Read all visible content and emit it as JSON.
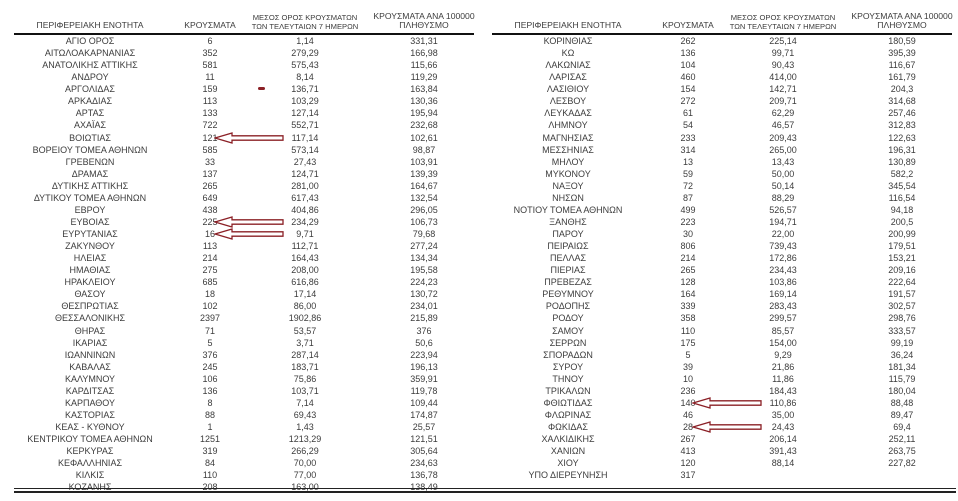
{
  "header": {
    "col_region": "ΠΕΡΙΦΕΡΕΙΑΚΗ ΕΝΟΤΗΤΑ",
    "col_cases": "ΚΡΟΥΣΜΑΤΑ",
    "col_avg7_line1": "ΜΕΣΟΣ ΟΡΟΣ ΚΡΟΥΣΜΑΤΩΝ",
    "col_avg7_line2": "ΤΩΝ ΤΕΛΕΥΤΑΙΩΝ 7 ΗΜΕΡΩΝ",
    "col_per100k_line1": "ΚΡΟΥΣΜΑΤΑ ΑΝΑ 100000",
    "col_per100k_line2": "ΠΛΗΘΥΣΜΟ"
  },
  "colors": {
    "annotation_arrow": "#8b2026",
    "text": "#3c3c3c",
    "rule": "#111111"
  },
  "tables": {
    "left": {
      "rows": [
        {
          "region": "ΑΓΙΟ ΟΡΟΣ",
          "cases": "6",
          "avg7": "1,14",
          "per100k": "331,31"
        },
        {
          "region": "ΑΙΤΩΛΟΑΚΑΡΝΑΝΙΑΣ",
          "cases": "352",
          "avg7": "279,29",
          "per100k": "166,98"
        },
        {
          "region": "ΑΝΑΤΟΛΙΚΗΣ ΑΤΤΙΚΗΣ",
          "cases": "581",
          "avg7": "575,43",
          "per100k": "115,66"
        },
        {
          "region": "ΑΝΔΡΟΥ",
          "cases": "11",
          "avg7": "8,14",
          "per100k": "119,29"
        },
        {
          "region": "ΑΡΓΟΛΙΔΑΣ",
          "cases": "159",
          "avg7": "136,71",
          "per100k": "163,84",
          "annotation": "dash"
        },
        {
          "region": "ΑΡΚΑΔΙΑΣ",
          "cases": "113",
          "avg7": "103,29",
          "per100k": "130,36"
        },
        {
          "region": "ΑΡΤΑΣ",
          "cases": "133",
          "avg7": "127,14",
          "per100k": "195,94"
        },
        {
          "region": "ΑΧΑΪΑΣ",
          "cases": "722",
          "avg7": "552,71",
          "per100k": "232,68"
        },
        {
          "region": "ΒΟΙΩΤΙΑΣ",
          "cases": "121",
          "avg7": "117,14",
          "per100k": "102,61",
          "annotation": "arrow"
        },
        {
          "region": "ΒΟΡΕΙΟΥ ΤΟΜΕΑ ΑΘΗΝΩΝ",
          "cases": "585",
          "avg7": "573,14",
          "per100k": "98,87"
        },
        {
          "region": "ΓΡΕΒΕΝΩΝ",
          "cases": "33",
          "avg7": "27,43",
          "per100k": "103,91"
        },
        {
          "region": "ΔΡΑΜΑΣ",
          "cases": "137",
          "avg7": "124,71",
          "per100k": "139,39"
        },
        {
          "region": "ΔΥΤΙΚΗΣ ΑΤΤΙΚΗΣ",
          "cases": "265",
          "avg7": "281,00",
          "per100k": "164,67"
        },
        {
          "region": "ΔΥΤΙΚΟΥ ΤΟΜΕΑ ΑΘΗΝΩΝ",
          "cases": "649",
          "avg7": "617,43",
          "per100k": "132,54"
        },
        {
          "region": "ΕΒΡΟΥ",
          "cases": "438",
          "avg7": "404,86",
          "per100k": "296,05"
        },
        {
          "region": "ΕΥΒΟΙΑΣ",
          "cases": "225",
          "avg7": "234,29",
          "per100k": "106,73",
          "annotation": "arrow"
        },
        {
          "region": "ΕΥΡΥΤΑΝΙΑΣ",
          "cases": "16",
          "avg7": "9,71",
          "per100k": "79,68",
          "annotation": "arrow"
        },
        {
          "region": "ΖΑΚΥΝΘΟΥ",
          "cases": "113",
          "avg7": "112,71",
          "per100k": "277,24"
        },
        {
          "region": "ΗΛΕΙΑΣ",
          "cases": "214",
          "avg7": "164,43",
          "per100k": "134,34"
        },
        {
          "region": "ΗΜΑΘΙΑΣ",
          "cases": "275",
          "avg7": "208,00",
          "per100k": "195,58"
        },
        {
          "region": "ΗΡΑΚΛΕΙΟΥ",
          "cases": "685",
          "avg7": "616,86",
          "per100k": "224,23"
        },
        {
          "region": "ΘΑΣΟΥ",
          "cases": "18",
          "avg7": "17,14",
          "per100k": "130,72"
        },
        {
          "region": "ΘΕΣΠΡΩΤΙΑΣ",
          "cases": "102",
          "avg7": "86,00",
          "per100k": "234,01"
        },
        {
          "region": "ΘΕΣΣΑΛΟΝΙΚΗΣ",
          "cases": "2397",
          "avg7": "1902,86",
          "per100k": "215,89"
        },
        {
          "region": "ΘΗΡΑΣ",
          "cases": "71",
          "avg7": "53,57",
          "per100k": "376"
        },
        {
          "region": "ΙΚΑΡΙΑΣ",
          "cases": "5",
          "avg7": "3,71",
          "per100k": "50,6"
        },
        {
          "region": "ΙΩΑΝΝΙΝΩΝ",
          "cases": "376",
          "avg7": "287,14",
          "per100k": "223,94"
        },
        {
          "region": "ΚΑΒΑΛΑΣ",
          "cases": "245",
          "avg7": "183,71",
          "per100k": "196,13"
        },
        {
          "region": "ΚΑΛΥΜΝΟΥ",
          "cases": "106",
          "avg7": "75,86",
          "per100k": "359,91"
        },
        {
          "region": "ΚΑΡΔΙΤΣΑΣ",
          "cases": "136",
          "avg7": "103,71",
          "per100k": "119,78"
        },
        {
          "region": "ΚΑΡΠΑΘΟΥ",
          "cases": "8",
          "avg7": "7,14",
          "per100k": "109,44"
        },
        {
          "region": "ΚΑΣΤΟΡΙΑΣ",
          "cases": "88",
          "avg7": "69,43",
          "per100k": "174,87"
        },
        {
          "region": "ΚΕΑΣ - ΚΥΘΝΟΥ",
          "cases": "1",
          "avg7": "1,43",
          "per100k": "25,57"
        },
        {
          "region": "ΚΕΝΤΡΙΚΟΥ ΤΟΜΕΑ ΑΘΗΝΩΝ",
          "cases": "1251",
          "avg7": "1213,29",
          "per100k": "121,51"
        },
        {
          "region": "ΚΕΡΚΥΡΑΣ",
          "cases": "319",
          "avg7": "266,29",
          "per100k": "305,64"
        },
        {
          "region": "ΚΕΦΑΛΛΗΝΙΑΣ",
          "cases": "84",
          "avg7": "70,00",
          "per100k": "234,63"
        },
        {
          "region": "ΚΙΛΚΙΣ",
          "cases": "110",
          "avg7": "77,00",
          "per100k": "136,78"
        },
        {
          "region": "ΚΟΖΑΝΗΣ",
          "cases": "208",
          "avg7": "163,00",
          "per100k": "138,49"
        }
      ]
    },
    "right": {
      "rows": [
        {
          "region": "ΚΟΡΙΝΘΙΑΣ",
          "cases": "262",
          "avg7": "225,14",
          "per100k": "180,59"
        },
        {
          "region": "ΚΩ",
          "cases": "136",
          "avg7": "99,71",
          "per100k": "395,39"
        },
        {
          "region": "ΛΑΚΩΝΙΑΣ",
          "cases": "104",
          "avg7": "90,43",
          "per100k": "116,67"
        },
        {
          "region": "ΛΑΡΙΣΑΣ",
          "cases": "460",
          "avg7": "414,00",
          "per100k": "161,79"
        },
        {
          "region": "ΛΑΣΙΘΙΟΥ",
          "cases": "154",
          "avg7": "142,71",
          "per100k": "204,3"
        },
        {
          "region": "ΛΕΣΒΟΥ",
          "cases": "272",
          "avg7": "209,71",
          "per100k": "314,68"
        },
        {
          "region": "ΛΕΥΚΑΔΑΣ",
          "cases": "61",
          "avg7": "62,29",
          "per100k": "257,46"
        },
        {
          "region": "ΛΗΜΝΟΥ",
          "cases": "54",
          "avg7": "46,57",
          "per100k": "312,83"
        },
        {
          "region": "ΜΑΓΝΗΣΙΑΣ",
          "cases": "233",
          "avg7": "209,43",
          "per100k": "122,63"
        },
        {
          "region": "ΜΕΣΣΗΝΙΑΣ",
          "cases": "314",
          "avg7": "265,00",
          "per100k": "196,31"
        },
        {
          "region": "ΜΗΛΟΥ",
          "cases": "13",
          "avg7": "13,43",
          "per100k": "130,89"
        },
        {
          "region": "ΜΥΚΟΝΟΥ",
          "cases": "59",
          "avg7": "50,00",
          "per100k": "582,2"
        },
        {
          "region": "ΝΑΞΟΥ",
          "cases": "72",
          "avg7": "50,14",
          "per100k": "345,54"
        },
        {
          "region": "ΝΗΣΩΝ",
          "cases": "87",
          "avg7": "88,29",
          "per100k": "116,54"
        },
        {
          "region": "ΝΟΤΙΟΥ ΤΟΜΕΑ ΑΘΗΝΩΝ",
          "cases": "499",
          "avg7": "526,57",
          "per100k": "94,18"
        },
        {
          "region": "ΞΑΝΘΗΣ",
          "cases": "223",
          "avg7": "194,71",
          "per100k": "200,5"
        },
        {
          "region": "ΠΑΡΟΥ",
          "cases": "30",
          "avg7": "22,00",
          "per100k": "200,99"
        },
        {
          "region": "ΠΕΙΡΑΙΩΣ",
          "cases": "806",
          "avg7": "739,43",
          "per100k": "179,51"
        },
        {
          "region": "ΠΕΛΛΑΣ",
          "cases": "214",
          "avg7": "172,86",
          "per100k": "153,21"
        },
        {
          "region": "ΠΙΕΡΙΑΣ",
          "cases": "265",
          "avg7": "234,43",
          "per100k": "209,16"
        },
        {
          "region": "ΠΡΕΒΕΖΑΣ",
          "cases": "128",
          "avg7": "103,86",
          "per100k": "222,64"
        },
        {
          "region": "ΡΕΘΥΜΝΟΥ",
          "cases": "164",
          "avg7": "169,14",
          "per100k": "191,57"
        },
        {
          "region": "ΡΟΔΟΠΗΣ",
          "cases": "339",
          "avg7": "283,43",
          "per100k": "302,57"
        },
        {
          "region": "ΡΟΔΟΥ",
          "cases": "358",
          "avg7": "299,57",
          "per100k": "298,76"
        },
        {
          "region": "ΣΑΜΟΥ",
          "cases": "110",
          "avg7": "85,57",
          "per100k": "333,57"
        },
        {
          "region": "ΣΕΡΡΩΝ",
          "cases": "175",
          "avg7": "154,00",
          "per100k": "99,19"
        },
        {
          "region": "ΣΠΟΡΑΔΩΝ",
          "cases": "5",
          "avg7": "9,29",
          "per100k": "36,24"
        },
        {
          "region": "ΣΥΡΟΥ",
          "cases": "39",
          "avg7": "21,86",
          "per100k": "181,34"
        },
        {
          "region": "ΤΗΝΟΥ",
          "cases": "10",
          "avg7": "11,86",
          "per100k": "115,79"
        },
        {
          "region": "ΤΡΙΚΑΛΩΝ",
          "cases": "236",
          "avg7": "184,43",
          "per100k": "180,04"
        },
        {
          "region": "ΦΘΙΩΤΙΔΑΣ",
          "cases": "140",
          "avg7": "110,86",
          "per100k": "88,48",
          "annotation": "arrow"
        },
        {
          "region": "ΦΛΩΡΙΝΑΣ",
          "cases": "46",
          "avg7": "35,00",
          "per100k": "89,47"
        },
        {
          "region": "ΦΩΚΙΔΑΣ",
          "cases": "28",
          "avg7": "24,43",
          "per100k": "69,4",
          "annotation": "arrow"
        },
        {
          "region": "ΧΑΛΚΙΔΙΚΗΣ",
          "cases": "267",
          "avg7": "206,14",
          "per100k": "252,11"
        },
        {
          "region": "ΧΑΝΙΩΝ",
          "cases": "413",
          "avg7": "391,43",
          "per100k": "263,75"
        },
        {
          "region": "ΧΙΟΥ",
          "cases": "120",
          "avg7": "88,14",
          "per100k": "227,82"
        },
        {
          "region": "ΥΠΟ ΔΙΕΡΕΥΝΗΣΗ",
          "cases": "317",
          "avg7": "",
          "per100k": ""
        }
      ]
    }
  }
}
